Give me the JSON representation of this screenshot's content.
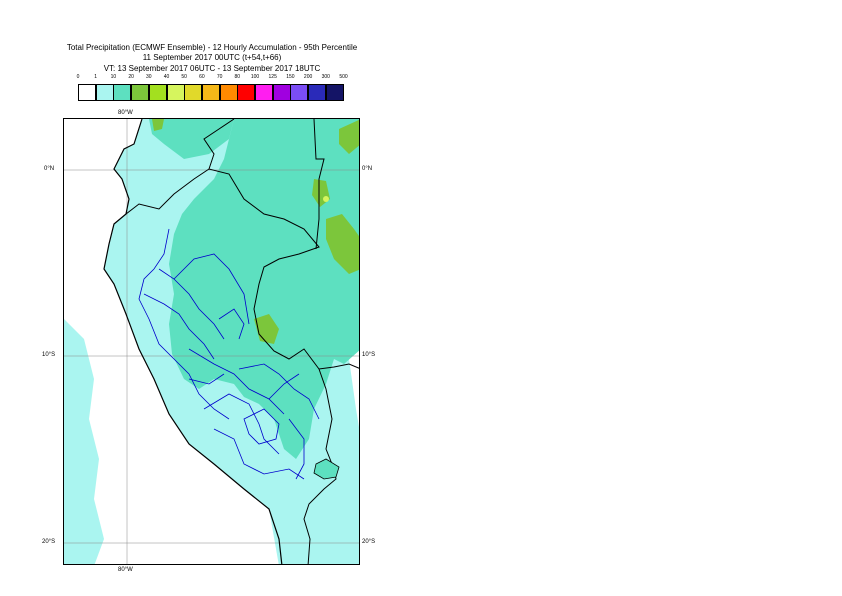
{
  "title": {
    "line1": "Total Precipitation (ECMWF Ensemble) - 12 Hourly Accumulation - 95th Percentile",
    "line2": "11 September 2017 00UTC (t+54,t+66)",
    "line3": "VT: 13 September 2017 06UTC - 13 September 2017 18UTC"
  },
  "legend": {
    "labels": [
      "0",
      "1",
      "10",
      "20",
      "30",
      "40",
      "50",
      "60",
      "70",
      "80",
      "100",
      "125",
      "150",
      "200",
      "300",
      "500"
    ],
    "colors": [
      "#ffffff",
      "#aaf5f0",
      "#5de0c0",
      "#7cc63b",
      "#a3e01f",
      "#d6f55e",
      "#e1d92a",
      "#f5b818",
      "#ff8a00",
      "#ff0000",
      "#ff1ef0",
      "#a000e0",
      "#7b4df5",
      "#2a2ab9",
      "#141466"
    ]
  },
  "map_labels": {
    "lon_80w_top": "80°W",
    "lon_80w_bottom": "80°W",
    "lat_0n_left": "0°N",
    "lat_0n_right": "0°N",
    "lat_10s_left": "10°S",
    "lat_10s_right": "10°S",
    "lat_20s_left": "20°S",
    "lat_20s_right": "20°S"
  },
  "colors": {
    "light_cyan": "#aaf5f0",
    "teal": "#5de0c0",
    "green": "#7cc63b",
    "lime": "#a3e01f",
    "yellow": "#d6f55e",
    "coast": "#000000",
    "region_border": "#0000cc",
    "grid": "#888888"
  }
}
